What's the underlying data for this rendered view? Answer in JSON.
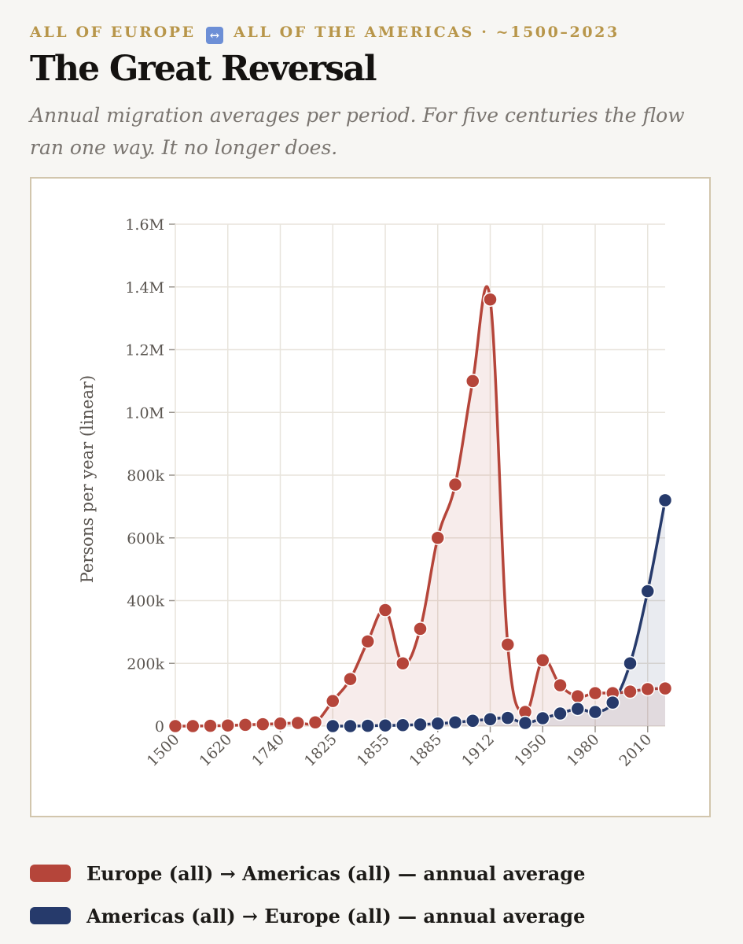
{
  "header": {
    "kicker_left": "ALL OF EUROPE",
    "kicker_icon": "left-right-arrow-icon",
    "kicker_swap_glyph": "↔",
    "kicker_right": "ALL OF THE AMERICAS · ~1500–2023",
    "title": "The Great Reversal",
    "subtitle": "Annual migration averages per period. For five centuries the flow ran one way. It no longer does."
  },
  "colors": {
    "europe_to_americas": "#b5453a",
    "americas_to_europe": "#263a6b",
    "kicker": "#b8964a"
  },
  "chart_data": {
    "type": "line",
    "ylabel": "Persons per year (linear)",
    "ylim": [
      0,
      1600000
    ],
    "yticks": [
      0,
      200000,
      400000,
      600000,
      800000,
      1000000,
      1200000,
      1400000,
      1600000
    ],
    "ytick_labels": [
      "0",
      "200k",
      "400k",
      "600k",
      "800k",
      "1.0M",
      "1.2M",
      "1.4M",
      "1.6M"
    ],
    "xtick_labels": [
      "1500",
      "1620",
      "1740",
      "1825",
      "1855",
      "1885",
      "1912",
      "1950",
      "1980",
      "2010"
    ],
    "grid": true,
    "legend_position": "bottom",
    "series": [
      {
        "name": "Europe (all) → Americas (all) — annual average",
        "color": "#b5453a",
        "fill": "rgba(181,69,58,0.10)",
        "values": [
          [
            0,
            0
          ],
          [
            1,
            0
          ],
          [
            2,
            1000
          ],
          [
            3,
            2000
          ],
          [
            4,
            4000
          ],
          [
            5,
            6000
          ],
          [
            6,
            8000
          ],
          [
            7,
            10000
          ],
          [
            8,
            12000
          ],
          [
            9,
            80000
          ],
          [
            10,
            150000
          ],
          [
            11,
            270000
          ],
          [
            12,
            370000
          ],
          [
            13,
            200000
          ],
          [
            14,
            310000
          ],
          [
            15,
            600000
          ],
          [
            16,
            770000
          ],
          [
            17,
            1100000
          ],
          [
            18,
            1360000
          ],
          [
            19,
            260000
          ],
          [
            20,
            45000
          ],
          [
            21,
            210000
          ],
          [
            22,
            130000
          ],
          [
            23,
            95000
          ],
          [
            24,
            105000
          ],
          [
            25,
            105000
          ],
          [
            26,
            110000
          ],
          [
            27,
            118000
          ],
          [
            28,
            120000
          ]
        ]
      },
      {
        "name": "Americas (all) → Europe (all) — annual average",
        "color": "#263a6b",
        "fill": "rgba(38,58,107,0.10)",
        "values": [
          [
            9,
            0
          ],
          [
            10,
            0
          ],
          [
            11,
            1000
          ],
          [
            12,
            2000
          ],
          [
            13,
            3000
          ],
          [
            14,
            5000
          ],
          [
            15,
            8000
          ],
          [
            16,
            12000
          ],
          [
            17,
            17000
          ],
          [
            18,
            22000
          ],
          [
            19,
            26000
          ],
          [
            20,
            10000
          ],
          [
            21,
            25000
          ],
          [
            22,
            40000
          ],
          [
            23,
            55000
          ],
          [
            24,
            45000
          ],
          [
            25,
            75000
          ],
          [
            26,
            200000
          ],
          [
            27,
            430000
          ],
          [
            28,
            720000
          ]
        ]
      }
    ]
  },
  "legend": {
    "items": [
      {
        "label": "Europe (all) → Americas (all) — annual average",
        "color": "#b5453a"
      },
      {
        "label": "Americas (all) → Europe (all) — annual average",
        "color": "#263a6b"
      }
    ]
  }
}
